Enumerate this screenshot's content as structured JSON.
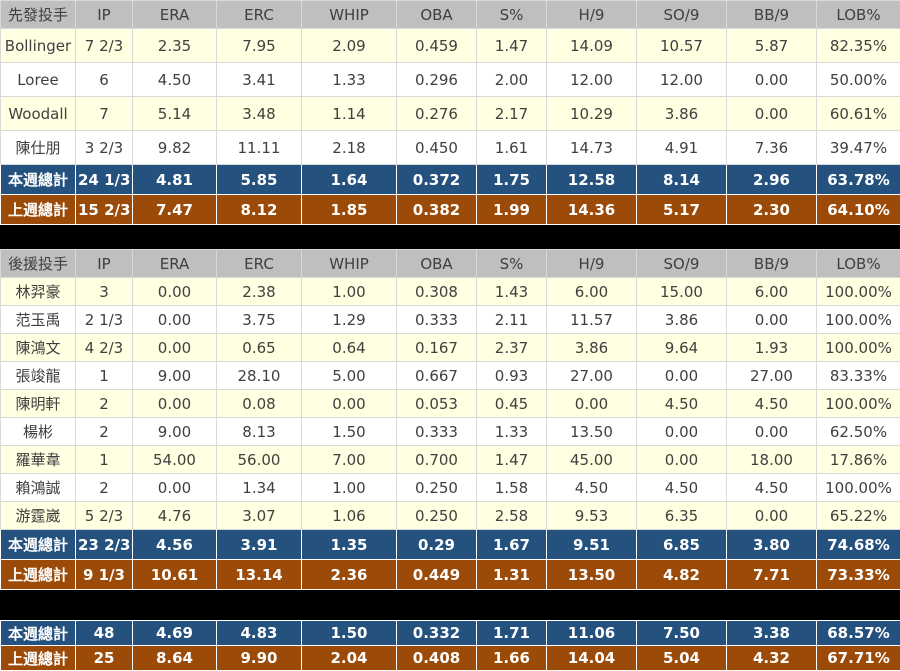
{
  "colors": {
    "page_bg": "#000000",
    "header_bg": "#BFBFBF",
    "header_text": "#3F3F3F",
    "row_cream": "#FFFFE1",
    "row_white": "#FFFFFF",
    "data_text": "#404040",
    "week_total_bg": "#25517E",
    "last_week_total_bg": "#9C4A08",
    "total_text": "#FFFFFF",
    "grid_line": "#D9D9D9"
  },
  "chart_data": {
    "type": "table",
    "columns": [
      "IP",
      "ERA",
      "ERC",
      "WHIP",
      "OBA",
      "S%",
      "H/9",
      "SO/9",
      "BB/9",
      "LOB%"
    ],
    "tables": [
      {
        "id": "starters",
        "title": "先發投手",
        "rows": [
          {
            "name": "Bollinger",
            "values": [
              "7 2/3",
              "2.35",
              "7.95",
              "2.09",
              "0.459",
              "1.47",
              "14.09",
              "10.57",
              "5.87",
              "82.35%"
            ]
          },
          {
            "name": "Loree",
            "values": [
              "6",
              "4.50",
              "3.41",
              "1.33",
              "0.296",
              "2.00",
              "12.00",
              "12.00",
              "0.00",
              "50.00%"
            ]
          },
          {
            "name": "Woodall",
            "values": [
              "7",
              "5.14",
              "3.48",
              "1.14",
              "0.276",
              "2.17",
              "10.29",
              "3.86",
              "0.00",
              "60.61%"
            ]
          },
          {
            "name": "陳仕朋",
            "values": [
              "3 2/3",
              "9.82",
              "11.11",
              "2.18",
              "0.450",
              "1.61",
              "14.73",
              "4.91",
              "7.36",
              "39.47%"
            ]
          }
        ],
        "totals": [
          {
            "name": "本週總計",
            "style": "week",
            "values": [
              "24 1/3",
              "4.81",
              "5.85",
              "1.64",
              "0.372",
              "1.75",
              "12.58",
              "8.14",
              "2.96",
              "63.78%"
            ]
          },
          {
            "name": "上週總計",
            "style": "last_week",
            "values": [
              "15 2/3",
              "7.47",
              "8.12",
              "1.85",
              "0.382",
              "1.99",
              "14.36",
              "5.17",
              "2.30",
              "64.10%"
            ]
          }
        ]
      },
      {
        "id": "relievers",
        "title": "後援投手",
        "rows": [
          {
            "name": "林羿豪",
            "values": [
              "3",
              "0.00",
              "2.38",
              "1.00",
              "0.308",
              "1.43",
              "6.00",
              "15.00",
              "6.00",
              "100.00%"
            ]
          },
          {
            "name": "范玉禹",
            "values": [
              "2 1/3",
              "0.00",
              "3.75",
              "1.29",
              "0.333",
              "2.11",
              "11.57",
              "3.86",
              "0.00",
              "100.00%"
            ]
          },
          {
            "name": "陳鴻文",
            "values": [
              "4 2/3",
              "0.00",
              "0.65",
              "0.64",
              "0.167",
              "2.37",
              "3.86",
              "9.64",
              "1.93",
              "100.00%"
            ]
          },
          {
            "name": "張竣龍",
            "values": [
              "1",
              "9.00",
              "28.10",
              "5.00",
              "0.667",
              "0.93",
              "27.00",
              "0.00",
              "27.00",
              "83.33%"
            ]
          },
          {
            "name": "陳明軒",
            "values": [
              "2",
              "0.00",
              "0.08",
              "0.00",
              "0.053",
              "0.45",
              "0.00",
              "4.50",
              "4.50",
              "100.00%"
            ]
          },
          {
            "name": "楊彬",
            "values": [
              "2",
              "9.00",
              "8.13",
              "1.50",
              "0.333",
              "1.33",
              "13.50",
              "0.00",
              "0.00",
              "62.50%"
            ]
          },
          {
            "name": "羅華韋",
            "values": [
              "1",
              "54.00",
              "56.00",
              "7.00",
              "0.700",
              "1.47",
              "45.00",
              "0.00",
              "18.00",
              "17.86%"
            ]
          },
          {
            "name": "賴鴻誠",
            "values": [
              "2",
              "0.00",
              "1.34",
              "1.00",
              "0.250",
              "1.58",
              "4.50",
              "4.50",
              "4.50",
              "100.00%"
            ]
          },
          {
            "name": "游霆崴",
            "values": [
              "5 2/3",
              "4.76",
              "3.07",
              "1.06",
              "0.250",
              "2.58",
              "9.53",
              "6.35",
              "0.00",
              "65.22%"
            ]
          }
        ],
        "totals": [
          {
            "name": "本週總計",
            "style": "week",
            "values": [
              "23 2/3",
              "4.56",
              "3.91",
              "1.35",
              "0.29",
              "1.67",
              "9.51",
              "6.85",
              "3.80",
              "74.68%"
            ]
          },
          {
            "name": "上週總計",
            "style": "last_week",
            "values": [
              "9 1/3",
              "10.61",
              "13.14",
              "2.36",
              "0.449",
              "1.31",
              "13.50",
              "4.82",
              "7.71",
              "73.33%"
            ]
          }
        ]
      },
      {
        "id": "overall",
        "title": null,
        "rows": [],
        "totals": [
          {
            "name": "本週總計",
            "style": "week",
            "values": [
              "48",
              "4.69",
              "4.83",
              "1.50",
              "0.332",
              "1.71",
              "11.06",
              "7.50",
              "3.38",
              "68.57%"
            ]
          },
          {
            "name": "上週總計",
            "style": "last_week",
            "values": [
              "25",
              "8.64",
              "9.90",
              "2.04",
              "0.408",
              "1.66",
              "14.04",
              "5.04",
              "4.32",
              "67.71%"
            ]
          }
        ]
      }
    ]
  }
}
